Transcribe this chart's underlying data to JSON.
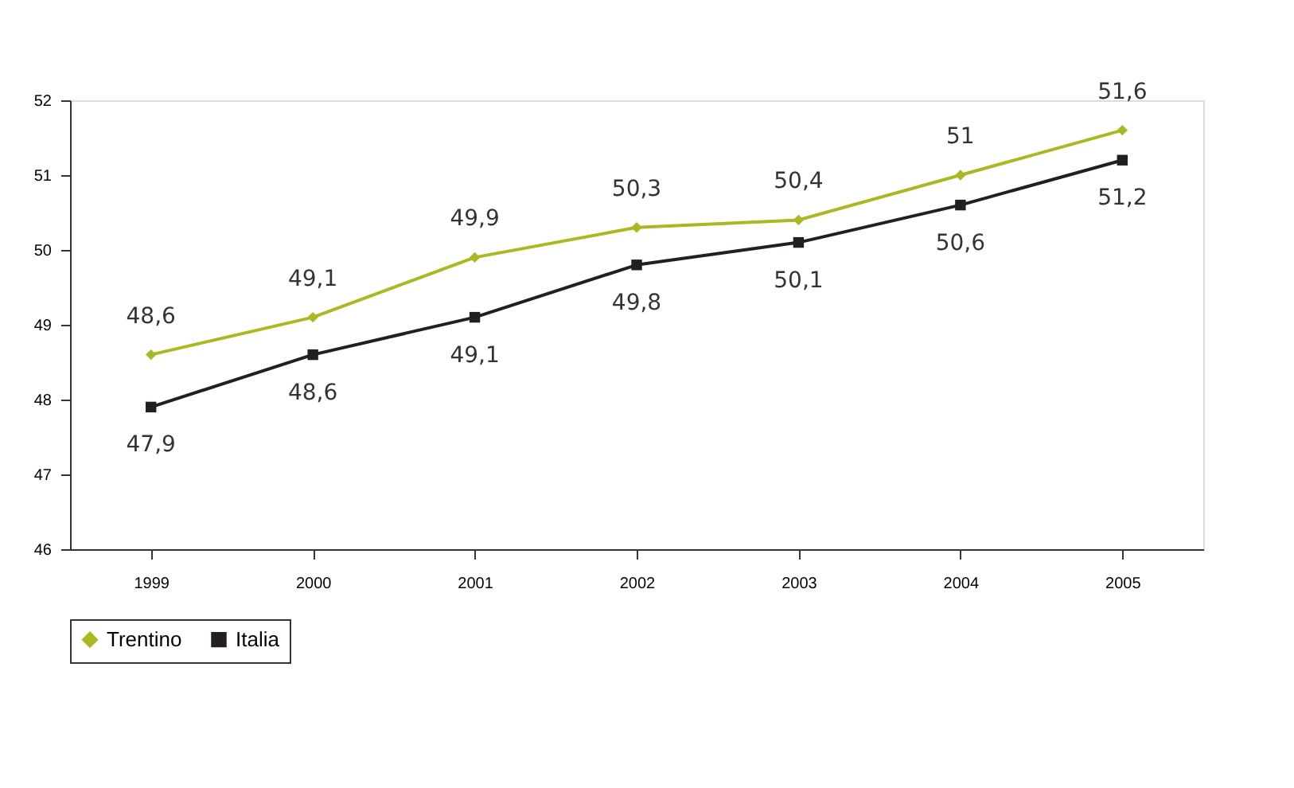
{
  "chart_data": {
    "type": "line",
    "categories": [
      "1999",
      "2000",
      "2001",
      "2002",
      "2003",
      "2004",
      "2005"
    ],
    "series": [
      {
        "name": "Trentino",
        "color": "#a9b823",
        "marker": "diamond",
        "values": [
          48.6,
          49.1,
          49.9,
          50.3,
          50.4,
          51,
          51.6
        ],
        "value_labels": [
          "48,6",
          "49,1",
          "49,9",
          "50,3",
          "50,4",
          "51",
          "51,6"
        ]
      },
      {
        "name": "Italia",
        "color": "#231f20",
        "marker": "square",
        "values": [
          47.9,
          48.6,
          49.1,
          49.8,
          50.1,
          50.6,
          51.2
        ],
        "value_labels": [
          "47,9",
          "48,6",
          "49,1",
          "49,8",
          "50,1",
          "50,6",
          "51,2"
        ]
      }
    ],
    "ylim": [
      46,
      52
    ],
    "yticks": [
      46,
      47,
      48,
      49,
      50,
      51,
      52
    ],
    "grid": false,
    "legend": "bottom",
    "line_style": "solid"
  }
}
